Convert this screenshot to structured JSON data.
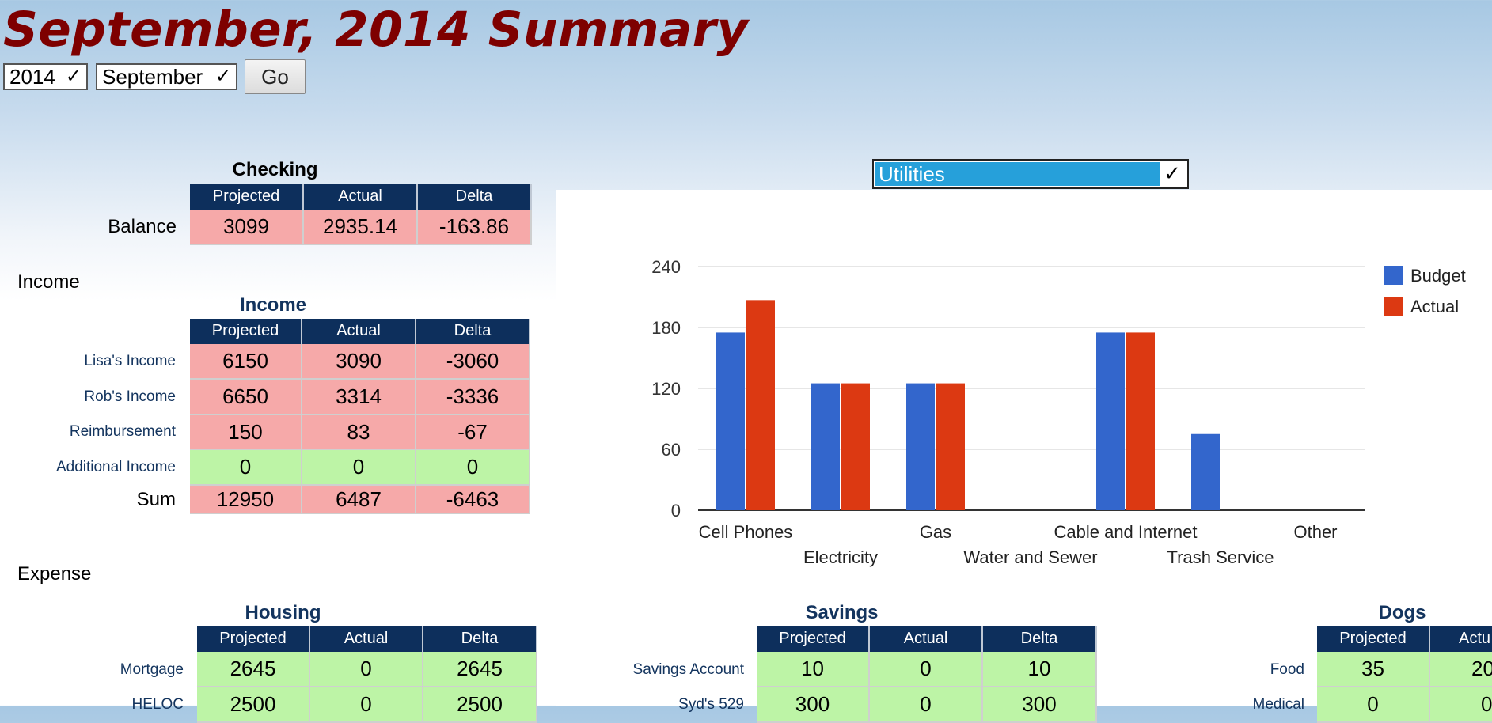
{
  "page": {
    "title": "September, 2014 Summary"
  },
  "controls": {
    "year": "2014",
    "month": "September",
    "go_label": "Go"
  },
  "checking": {
    "title": "Checking",
    "headers": [
      "Projected",
      "Actual",
      "Delta"
    ],
    "rows": [
      {
        "label": "Balance",
        "values": [
          "3099",
          "2935.14",
          "-163.86"
        ],
        "status": "pink"
      }
    ]
  },
  "income": {
    "section_label": "Income",
    "title": "Income",
    "headers": [
      "Projected",
      "Actual",
      "Delta"
    ],
    "rows": [
      {
        "label": "Lisa's Income",
        "values": [
          "6150",
          "3090",
          "-3060"
        ],
        "status": "pink"
      },
      {
        "label": "Rob's Income",
        "values": [
          "6650",
          "3314",
          "-3336"
        ],
        "status": "pink"
      },
      {
        "label": "Reimbursement",
        "values": [
          "150",
          "83",
          "-67"
        ],
        "status": "pink"
      },
      {
        "label": "Additional Income",
        "values": [
          "0",
          "0",
          "0"
        ],
        "status": "green"
      }
    ],
    "sum": {
      "label": "Sum",
      "values": [
        "12950",
        "6487",
        "-6463"
      ],
      "status": "pink"
    }
  },
  "expense": {
    "section_label": "Expense",
    "housing": {
      "title": "Housing",
      "headers": [
        "Projected",
        "Actual",
        "Delta"
      ],
      "rows": [
        {
          "label": "Mortgage",
          "values": [
            "2645",
            "0",
            "2645"
          ]
        },
        {
          "label": "HELOC",
          "values": [
            "2500",
            "0",
            "2500"
          ]
        }
      ]
    },
    "savings": {
      "title": "Savings",
      "headers": [
        "Projected",
        "Actual",
        "Delta"
      ],
      "rows": [
        {
          "label": "Savings Account",
          "values": [
            "10",
            "0",
            "10"
          ]
        },
        {
          "label": "Syd's 529",
          "values": [
            "300",
            "0",
            "300"
          ]
        }
      ]
    },
    "dogs": {
      "title": "Dogs",
      "headers": [
        "Projected",
        "Actu"
      ],
      "rows": [
        {
          "label": "Food",
          "values": [
            "35",
            "20"
          ]
        },
        {
          "label": "Medical",
          "values": [
            "0",
            "0"
          ]
        }
      ]
    }
  },
  "chart_selector": {
    "value": "Utilities"
  },
  "colors": {
    "budget": "#3366cc",
    "actual": "#dc3912",
    "pink": "#f6a9a9",
    "green": "#bdf4a6",
    "header": "#0d2f5c",
    "title": "#7e0000"
  },
  "chart_data": {
    "type": "bar",
    "categories": [
      "Cell Phones",
      "Electricity",
      "Gas",
      "Water and Sewer",
      "Cable and Internet",
      "Trash Service",
      "Other"
    ],
    "series": [
      {
        "name": "Budget",
        "values": [
          175,
          125,
          125,
          0,
          175,
          75,
          0
        ]
      },
      {
        "name": "Actual",
        "values": [
          207,
          125,
          125,
          0,
          175,
          0,
          0
        ]
      }
    ],
    "yticks": [
      "0",
      "60",
      "120",
      "180",
      "240"
    ],
    "ylim": [
      0,
      240
    ],
    "grid": true,
    "legend": "right"
  }
}
